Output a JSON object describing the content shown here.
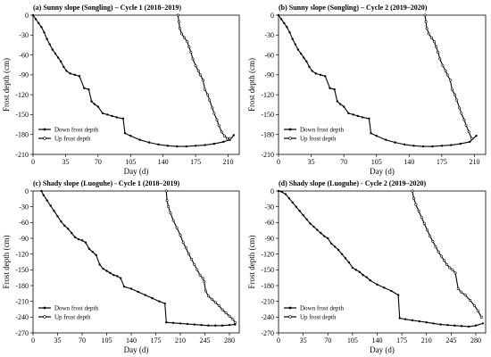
{
  "figure": {
    "x_label": "Day (d)",
    "y_label": "Frost depth (cm)"
  },
  "chart_data": [
    {
      "type": "line",
      "title": "(a) Sunny slope (Songling) – Cycle 1 (2018–2019)",
      "xlabel": "Day (d)",
      "ylabel": "Frost depth (cm)",
      "xlim": [
        0,
        222
      ],
      "ylim": [
        -210,
        0
      ],
      "xticks": [
        0,
        35,
        70,
        105,
        140,
        175,
        210
      ],
      "yticks": [
        0,
        -30,
        -60,
        -90,
        -120,
        -150,
        -180,
        -210
      ],
      "legend": {
        "position": "bottom-left",
        "entries": [
          "Down frost depth",
          "Up frost depth"
        ]
      },
      "series": [
        {
          "name": "Down frost depth",
          "x": [
            0,
            3,
            6,
            9,
            12,
            15,
            18,
            21,
            24,
            27,
            30,
            33,
            36,
            40,
            45,
            50,
            55,
            60,
            63,
            66,
            70,
            75,
            80,
            85,
            90,
            97,
            99,
            105,
            115,
            125,
            135,
            145,
            155,
            165,
            175,
            185,
            195,
            205,
            212,
            216
          ],
          "y": [
            0,
            -6,
            -12,
            -18,
            -26,
            -36,
            -44,
            -52,
            -58,
            -64,
            -70,
            -78,
            -84,
            -88,
            -90,
            -92,
            -110,
            -112,
            -130,
            -134,
            -138,
            -148,
            -150,
            -152,
            -154,
            -156,
            -178,
            -182,
            -188,
            -192,
            -195,
            -197,
            -198,
            -198,
            -197,
            -196,
            -194,
            -191,
            -188,
            -181
          ]
        },
        {
          "name": "Up frost depth",
          "x": [
            156,
            157,
            158,
            160,
            163,
            166,
            168,
            170,
            172,
            175,
            178,
            180,
            183,
            185,
            188,
            190,
            193,
            195,
            198,
            200,
            203,
            206,
            209,
            212
          ],
          "y": [
            0,
            -10,
            -20,
            -28,
            -34,
            -40,
            -48,
            -56,
            -66,
            -76,
            -84,
            -90,
            -98,
            -112,
            -120,
            -128,
            -140,
            -148,
            -158,
            -166,
            -176,
            -182,
            -186,
            -186
          ]
        }
      ]
    },
    {
      "type": "line",
      "title": "(b) Sunny slope (Songling) – Cycle 2 (2019–2020)",
      "xlabel": "Day (d)",
      "ylabel": "Frost depth (cm)",
      "xlim": [
        0,
        222
      ],
      "ylim": [
        -210,
        0
      ],
      "xticks": [
        0,
        35,
        70,
        105,
        140,
        175,
        210
      ],
      "yticks": [
        0,
        -30,
        -60,
        -90,
        -120,
        -150,
        -180,
        -210
      ],
      "legend": {
        "position": "bottom-left",
        "entries": [
          "Down frost depth",
          "Up frost depth"
        ]
      },
      "series": [
        {
          "name": "Down frost depth",
          "x": [
            0,
            3,
            6,
            9,
            12,
            15,
            18,
            21,
            24,
            27,
            30,
            33,
            36,
            40,
            45,
            50,
            55,
            60,
            63,
            66,
            70,
            75,
            80,
            85,
            90,
            97,
            99,
            105,
            115,
            125,
            135,
            145,
            155,
            165,
            175,
            185,
            195,
            205,
            212
          ],
          "y": [
            0,
            -6,
            -12,
            -18,
            -26,
            -36,
            -44,
            -52,
            -58,
            -64,
            -70,
            -78,
            -84,
            -88,
            -90,
            -92,
            -110,
            -112,
            -130,
            -134,
            -138,
            -148,
            -150,
            -152,
            -154,
            -156,
            -178,
            -182,
            -188,
            -192,
            -195,
            -197,
            -198,
            -198,
            -197,
            -196,
            -194,
            -191,
            -182
          ]
        },
        {
          "name": "Up frost depth",
          "x": [
            157,
            158,
            159,
            161,
            164,
            167,
            169,
            171,
            173,
            176,
            179,
            181,
            184,
            186,
            189,
            191,
            194,
            196,
            199,
            201,
            204,
            207
          ],
          "y": [
            0,
            -10,
            -20,
            -28,
            -34,
            -40,
            -48,
            -56,
            -66,
            -76,
            -84,
            -90,
            -98,
            -112,
            -120,
            -128,
            -140,
            -148,
            -158,
            -166,
            -176,
            -186
          ]
        }
      ]
    },
    {
      "type": "line",
      "title": "(c) Shady slope (Luoguhe) - Cycle 1 (2018–2019)",
      "xlabel": "Day (d)",
      "ylabel": "Frost depth (cm)",
      "xlim": [
        0,
        294
      ],
      "ylim": [
        -270,
        0
      ],
      "xticks": [
        0,
        35,
        70,
        105,
        140,
        175,
        210,
        245,
        280
      ],
      "yticks": [
        0,
        -30,
        -60,
        -90,
        -120,
        -150,
        -180,
        -210,
        -240,
        -270
      ],
      "legend": {
        "position": "bottom-left",
        "entries": [
          "Down frost depth",
          "Up frost depth"
        ]
      },
      "series": [
        {
          "name": "Down frost depth",
          "x": [
            12,
            15,
            20,
            25,
            30,
            35,
            40,
            45,
            50,
            55,
            60,
            65,
            70,
            75,
            80,
            85,
            90,
            95,
            100,
            105,
            110,
            115,
            120,
            125,
            130,
            140,
            150,
            160,
            170,
            180,
            188,
            190,
            200,
            210,
            220,
            230,
            240,
            250,
            260,
            270,
            280,
            288
          ],
          "y": [
            0,
            -8,
            -18,
            -28,
            -38,
            -48,
            -58,
            -66,
            -72,
            -80,
            -88,
            -92,
            -94,
            -98,
            -110,
            -116,
            -122,
            -140,
            -148,
            -152,
            -156,
            -160,
            -162,
            -166,
            -182,
            -186,
            -192,
            -198,
            -204,
            -210,
            -214,
            -250,
            -251,
            -252,
            -253,
            -254,
            -255,
            -256,
            -256,
            -256,
            -255,
            -254
          ]
        },
        {
          "name": "Up frost depth",
          "x": [
            190,
            191,
            193,
            196,
            200,
            205,
            210,
            214,
            218,
            222,
            226,
            230,
            234,
            238,
            242,
            244,
            246,
            250,
            255,
            260,
            265,
            270,
            275,
            280,
            285,
            288
          ],
          "y": [
            0,
            -18,
            -30,
            -42,
            -56,
            -70,
            -84,
            -98,
            -108,
            -120,
            -130,
            -140,
            -150,
            -160,
            -166,
            -172,
            -190,
            -200,
            -206,
            -212,
            -218,
            -226,
            -232,
            -238,
            -244,
            -250
          ]
        }
      ]
    },
    {
      "type": "line",
      "title": "(d) Shady slope (Luoguhe) - Cycle 2 (2019–2020)",
      "xlabel": "Day (d)",
      "ylabel": "Frost depth (cm)",
      "xlim": [
        0,
        294
      ],
      "ylim": [
        -270,
        0
      ],
      "xticks": [
        0,
        35,
        70,
        105,
        140,
        175,
        210,
        245,
        280
      ],
      "yticks": [
        0,
        -30,
        -60,
        -90,
        -120,
        -150,
        -180,
        -210,
        -240,
        -270
      ],
      "legend": {
        "position": "bottom-left",
        "entries": [
          "Down frost depth",
          "Up frost depth"
        ]
      },
      "series": [
        {
          "name": "Down frost depth",
          "x": [
            0,
            5,
            10,
            15,
            20,
            25,
            30,
            35,
            40,
            45,
            50,
            55,
            60,
            65,
            70,
            75,
            80,
            85,
            90,
            95,
            100,
            105,
            110,
            115,
            120,
            125,
            130,
            140,
            150,
            160,
            170,
            172,
            180,
            190,
            200,
            210,
            220,
            230,
            240,
            250,
            260,
            270,
            280,
            290
          ],
          "y": [
            0,
            -2,
            -6,
            -14,
            -22,
            -30,
            -38,
            -46,
            -54,
            -62,
            -68,
            -74,
            -80,
            -86,
            -90,
            -100,
            -106,
            -112,
            -120,
            -128,
            -136,
            -146,
            -150,
            -154,
            -160,
            -164,
            -170,
            -178,
            -184,
            -190,
            -198,
            -242,
            -244,
            -246,
            -248,
            -250,
            -252,
            -254,
            -255,
            -256,
            -257,
            -258,
            -256,
            -252
          ]
        },
        {
          "name": "Up frost depth",
          "x": [
            190,
            192,
            195,
            199,
            203,
            207,
            211,
            215,
            219,
            223,
            227,
            231,
            235,
            239,
            243,
            247,
            251,
            255,
            259,
            265,
            272,
            278,
            283,
            288
          ],
          "y": [
            0,
            -14,
            -26,
            -38,
            -50,
            -62,
            -74,
            -86,
            -96,
            -106,
            -116,
            -124,
            -132,
            -140,
            -146,
            -150,
            -156,
            -186,
            -192,
            -198,
            -208,
            -218,
            -228,
            -240
          ]
        }
      ]
    }
  ]
}
